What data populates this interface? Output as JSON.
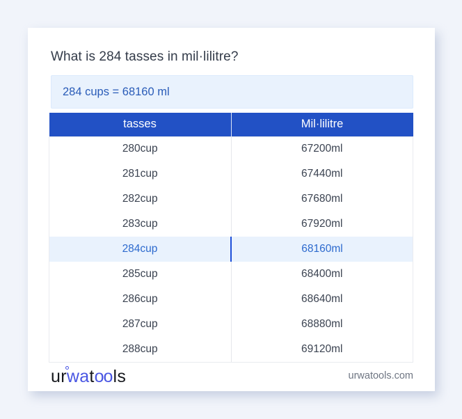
{
  "page": {
    "title": "What is 284 tasses in mil·lilitre?",
    "answer": "284 cups = 68160 ml"
  },
  "table": {
    "headers": [
      "tasses",
      "Mil·lilitre"
    ],
    "rows": [
      {
        "cup": "280cup",
        "ml": "67200ml"
      },
      {
        "cup": "281cup",
        "ml": "67440ml"
      },
      {
        "cup": "282cup",
        "ml": "67680ml"
      },
      {
        "cup": "283cup",
        "ml": "67920ml"
      },
      {
        "cup": "284cup",
        "ml": "68160ml"
      },
      {
        "cup": "285cup",
        "ml": "68400ml"
      },
      {
        "cup": "286cup",
        "ml": "68640ml"
      },
      {
        "cup": "287cup",
        "ml": "68880ml"
      },
      {
        "cup": "288cup",
        "ml": "69120ml"
      }
    ],
    "highlight_index": 4
  },
  "footer": {
    "logo_ur": "ur",
    "logo_wa": "wa",
    "logo_t": "t",
    "logo_oo": "oo",
    "logo_ls": "ls",
    "site": "urwatools.com"
  },
  "colors": {
    "page_bg": "#f1f4fa",
    "card_bg": "#ffffff",
    "header_bg": "#2251c5",
    "header_text": "#ffffff",
    "title_text": "#333b49",
    "cell_text": "#3b4351",
    "answer_bg": "#e9f2fd",
    "answer_text": "#2a5cb8",
    "highlight_bg": "#e9f2fd",
    "highlight_text": "#2d6ace",
    "highlight_divider": "#1d4ed8",
    "table_border": "#e9ebef",
    "logo_dark": "#16181d",
    "logo_blue": "#4956e3",
    "site_text": "#6f7683"
  }
}
